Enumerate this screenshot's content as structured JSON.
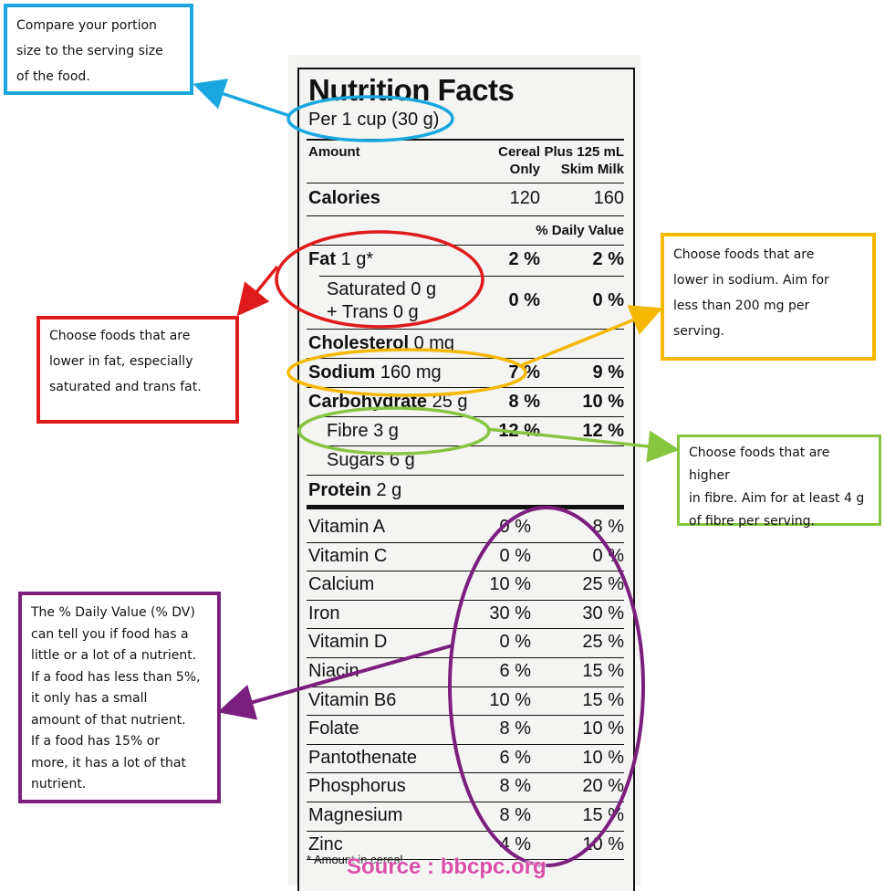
{
  "label": {
    "title": "Nutrition Facts",
    "serving": "Per 1 cup (30 g)",
    "amount_header": "Amount",
    "col1_header_1": "Cereal",
    "col1_header_2": "Only",
    "col2_header_1": "Plus 125 mL",
    "col2_header_2": "Skim Milk",
    "calories": {
      "label": "Calories",
      "v1": "120",
      "v2": "160"
    },
    "dv_header": "% Daily Value",
    "fat": {
      "label": "Fat",
      "amount": "1 g*",
      "v1": "2 %",
      "v2": "2 %"
    },
    "saturated": {
      "label_1": "Saturated 0 g",
      "label_2": "+ Trans 0 g",
      "v1": "0 %",
      "v2": "0 %"
    },
    "cholesterol": {
      "label": "Cholesterol",
      "amount": "0 mg"
    },
    "sodium": {
      "label": "Sodium",
      "amount": "160 mg",
      "v1": "7 %",
      "v2": "9 %"
    },
    "carbohydrate": {
      "label": "Carbohydrate",
      "amount": "25 g",
      "v1": "8 %",
      "v2": "10 %"
    },
    "fibre": {
      "label": "Fibre 3 g",
      "v1": "12 %",
      "v2": "12 %"
    },
    "sugars": {
      "label": "Sugars 6 g"
    },
    "protein": {
      "label": "Protein",
      "amount": "2 g"
    },
    "vitamins": [
      {
        "name": "Vitamin A",
        "v1": "0 %",
        "v2": "8 %"
      },
      {
        "name": "Vitamin C",
        "v1": "0 %",
        "v2": "0 %"
      },
      {
        "name": "Calcium",
        "v1": "10 %",
        "v2": "25 %"
      },
      {
        "name": "Iron",
        "v1": "30 %",
        "v2": "30 %"
      },
      {
        "name": "Vitamin D",
        "v1": "0 %",
        "v2": "25 %"
      },
      {
        "name": "Niacin",
        "v1": "6 %",
        "v2": "15 %"
      },
      {
        "name": "Vitamin B6",
        "v1": "10 %",
        "v2": "15 %"
      },
      {
        "name": "Folate",
        "v1": "8 %",
        "v2": "10 %"
      },
      {
        "name": "Pantothenate",
        "v1": "6 %",
        "v2": "10 %"
      },
      {
        "name": "Phosphorus",
        "v1": "8 %",
        "v2": "20 %"
      },
      {
        "name": "Magnesium",
        "v1": "8 %",
        "v2": "15 %"
      },
      {
        "name": "Zinc",
        "v1": "4 %",
        "v2": "10 %"
      }
    ],
    "footnote": "* Amount in cereal"
  },
  "callouts": {
    "serving": [
      "Compare your portion",
      "size to the serving size",
      "of the food."
    ],
    "fat": [
      "Choose foods that are",
      "lower in fat, especially",
      "saturated and trans fat."
    ],
    "sodium": [
      "Choose foods that are",
      "lower in sodium. Aim for",
      "less than 200 mg per",
      "serving."
    ],
    "fibre": [
      "Choose foods that are higher",
      "in fibre. Aim for at least 4 g",
      "of fibre per serving."
    ],
    "dv": [
      "The % Daily Value (% DV)",
      "can tell you if food has a",
      "little or a lot of a nutrient.",
      "If a food has less than 5%,",
      "it only has a small",
      "amount of that nutrient.",
      "If a food has 15% or",
      "more, it has a lot of that",
      "nutrient."
    ]
  },
  "colors": {
    "blue": "#1aa7e0",
    "red": "#e01b1b",
    "orange": "#f5b800",
    "green": "#86c540",
    "purple": "#7b1f7e",
    "source": "#d94fa8"
  },
  "source": "Source : bbcpc.org"
}
